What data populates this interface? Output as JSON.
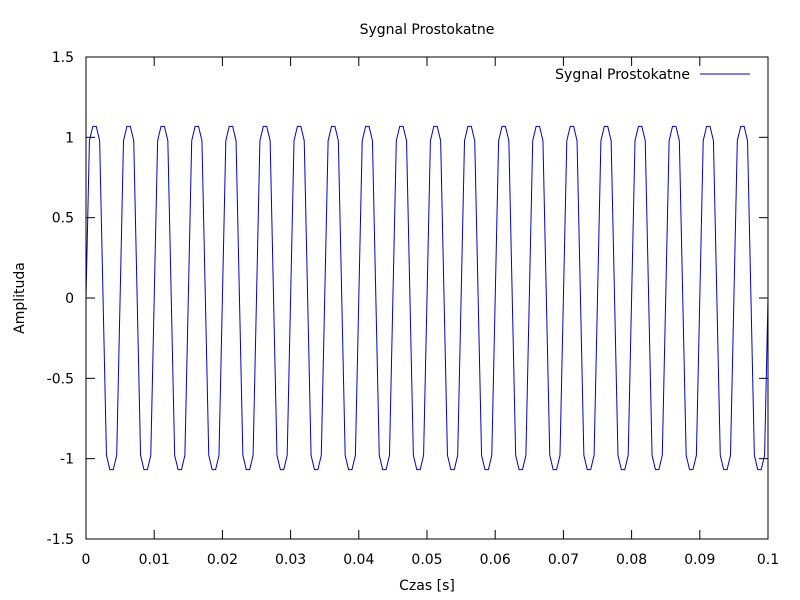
{
  "chart_data": {
    "type": "line",
    "title": "Sygnal Prostokatne",
    "xlabel": "Czas [s]",
    "ylabel": "Amplituda",
    "xlim": [
      0,
      0.1
    ],
    "ylim": [
      -1.5,
      1.5
    ],
    "xticks": [
      0,
      0.01,
      0.02,
      0.03,
      0.04,
      0.05,
      0.06,
      0.07,
      0.08,
      0.09,
      0.1
    ],
    "xtick_labels": [
      "0",
      "0.01",
      "0.02",
      "0.03",
      "0.04",
      "0.05",
      "0.06",
      "0.07",
      "0.08",
      "0.09",
      "0.1"
    ],
    "yticks": [
      -1.5,
      -1,
      -0.5,
      0,
      0.5,
      1,
      1.5
    ],
    "ytick_labels": [
      "-1.5",
      "-1",
      "-0.5",
      "0",
      "0.5",
      "1",
      "1.5"
    ],
    "grid": false,
    "legend": {
      "position": "top-right",
      "entries": [
        "Sygnal Prostokatne"
      ]
    },
    "series": [
      {
        "name": "Sygnal Prostokatne",
        "color": "#0000cc",
        "frequency_hz": 200,
        "harmonics": [
          1,
          3,
          5,
          7
        ],
        "sample_rate_hz": 2000,
        "x_start": 0,
        "x_end": 0.1
      }
    ]
  }
}
